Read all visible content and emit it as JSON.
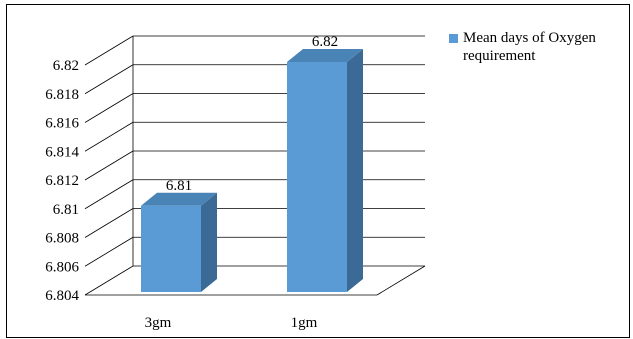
{
  "chart_data": {
    "type": "bar",
    "categories": [
      "3gm",
      "1gm"
    ],
    "series": [
      {
        "name": "Mean days of Oxygen requirement",
        "values": [
          6.81,
          6.82
        ],
        "data_labels": [
          "6.81",
          "6.82"
        ]
      }
    ],
    "y_ticks": [
      "6.804",
      "6.806",
      "6.808",
      "6.81",
      "6.812",
      "6.814",
      "6.816",
      "6.818",
      "6.82"
    ],
    "ylim": [
      6.804,
      6.82
    ],
    "grid": true,
    "three_d": true,
    "legend_position": "top-right",
    "colors": {
      "bar_front": "#5b9bd5",
      "bar_side": "#3a6a95",
      "bar_top": "#4a83b6",
      "grid": "#000000",
      "legend_swatch": "#5b9bd5"
    }
  }
}
